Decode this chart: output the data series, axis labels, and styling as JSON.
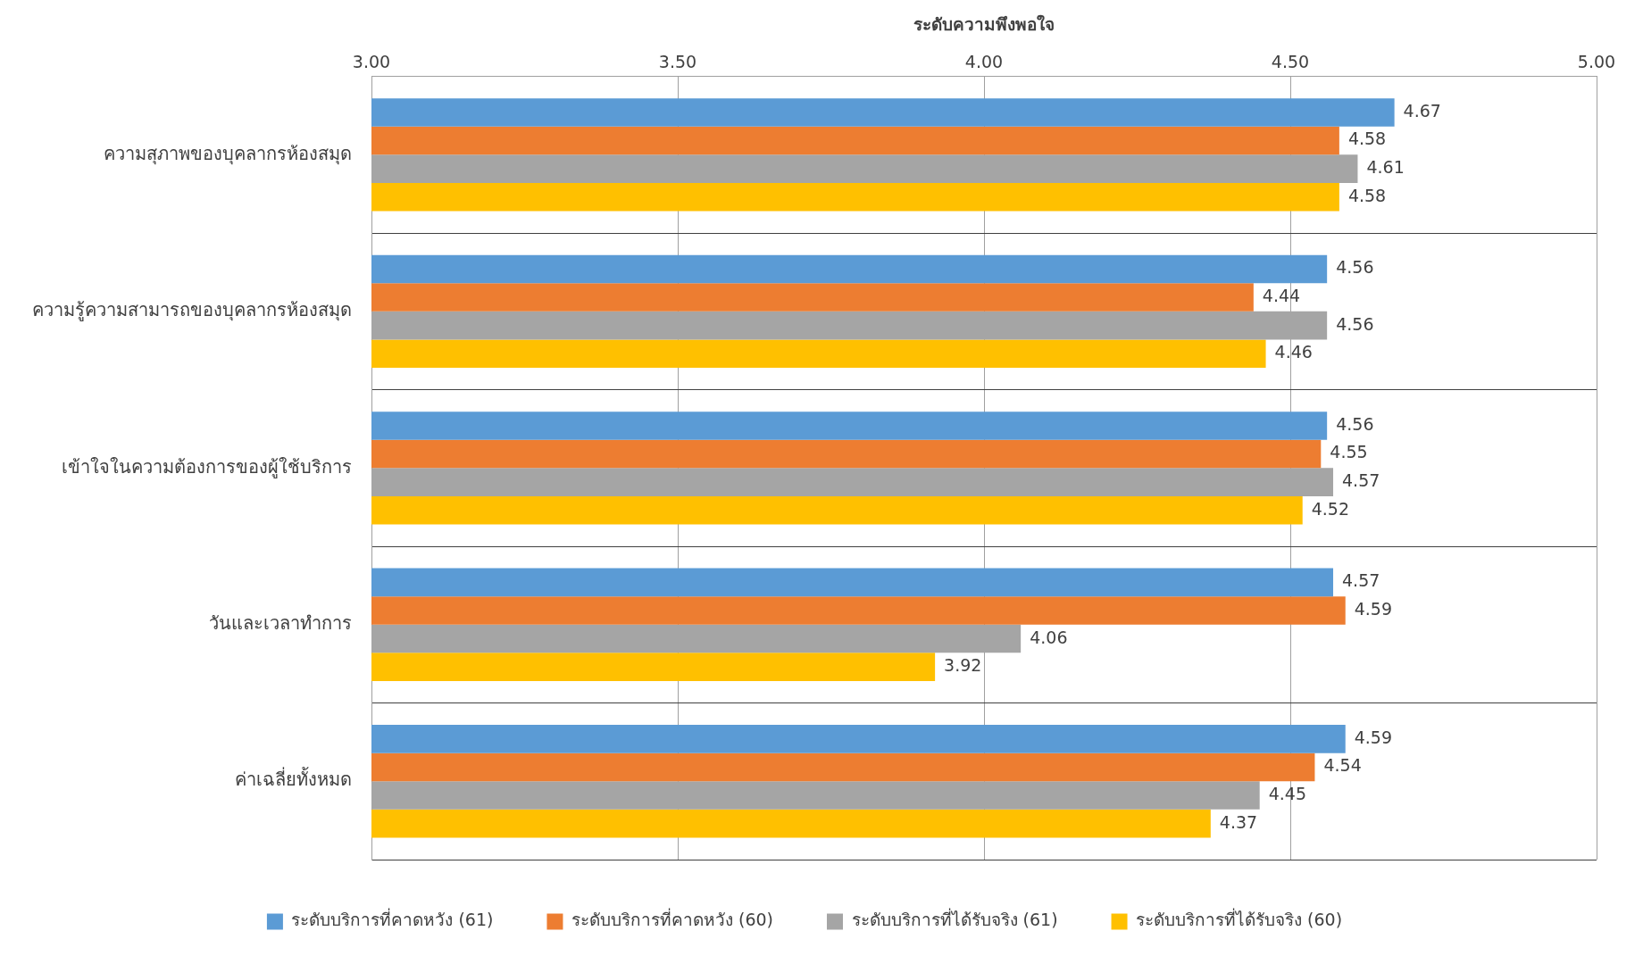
{
  "chart_data": {
    "type": "bar",
    "orientation": "horizontal",
    "xlabel": "ระดับความพึงพอใจ",
    "categories": [
      "ความสุภาพของบุคลากรห้องสมุด",
      "ความรู้ความสามารถของบุคลากรห้องสมุด",
      "เข้าใจในความต้องการของผู้ใช้บริการ",
      "วันและเวลาทำการ",
      "ค่าเฉลี่ยทั้งหมด"
    ],
    "series": [
      {
        "name": "ระดับบริการที่คาดหวัง (61)",
        "color": "#5b9bd5",
        "values": [
          4.67,
          4.56,
          4.56,
          4.57,
          4.59
        ]
      },
      {
        "name": "ระดับบริการที่คาดหวัง (60)",
        "color": "#ed7d31",
        "values": [
          4.58,
          4.44,
          4.55,
          4.59,
          4.54
        ]
      },
      {
        "name": "ระดับบริการที่ได้รับจริง (61)",
        "color": "#a5a5a5",
        "values": [
          4.61,
          4.56,
          4.57,
          4.06,
          4.45
        ]
      },
      {
        "name": "ระดับบริการที่ได้รับจริง (60)",
        "color": "#ffc000",
        "values": [
          4.58,
          4.46,
          4.52,
          3.92,
          4.37
        ]
      }
    ],
    "xlim": [
      3,
      5
    ],
    "xticks": [
      {
        "value": 3,
        "label": "3.00"
      },
      {
        "value": 3.5,
        "label": "3.50"
      },
      {
        "value": 4,
        "label": "4.00"
      },
      {
        "value": 4.5,
        "label": "4.50"
      },
      {
        "value": 5,
        "label": "5.00"
      }
    ],
    "grid": true,
    "legend": "bottom",
    "data_labels": true
  }
}
